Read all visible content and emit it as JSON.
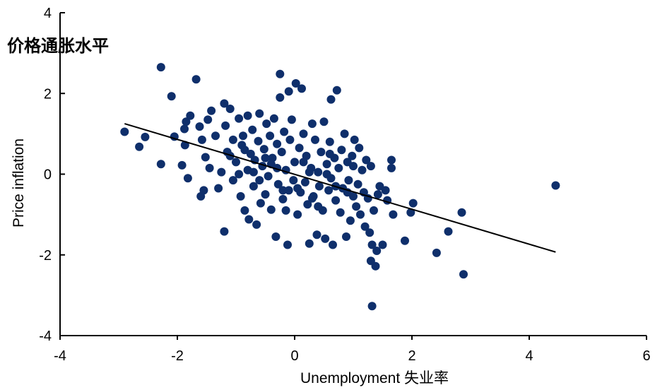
{
  "chart_data": {
    "type": "scatter",
    "title": "",
    "xlabel": "Unemployment 失业率",
    "ylabel": "Price inflation",
    "ylabel_cn": "价格通胀水平",
    "xlim": [
      -4,
      6
    ],
    "ylim": [
      -4,
      4
    ],
    "x_ticks": [
      "-4",
      "-2",
      "0",
      "2",
      "4",
      "6"
    ],
    "y_ticks": [
      "4",
      "2",
      "0",
      "-2",
      "-4"
    ],
    "grid": false,
    "colors": {
      "points": "#0f2f6b",
      "trend": "#000000",
      "axis": "#000000"
    },
    "trend_line": {
      "x": [
        -2.9,
        4.45
      ],
      "y": [
        1.25,
        -1.93
      ]
    },
    "points": [
      [
        -2.9,
        1.05
      ],
      [
        -2.55,
        0.92
      ],
      [
        -2.65,
        0.68
      ],
      [
        -2.28,
        0.25
      ],
      [
        -2.28,
        2.65
      ],
      [
        -2.1,
        1.93
      ],
      [
        -2.05,
        0.93
      ],
      [
        -1.92,
        0.22
      ],
      [
        -1.88,
        1.12
      ],
      [
        -1.87,
        0.72
      ],
      [
        -1.82,
        -0.1
      ],
      [
        -1.85,
        1.3
      ],
      [
        -1.78,
        1.45
      ],
      [
        -1.68,
        2.35
      ],
      [
        -1.62,
        1.18
      ],
      [
        -1.6,
        -0.55
      ],
      [
        -1.58,
        0.85
      ],
      [
        -1.55,
        -0.4
      ],
      [
        -1.52,
        0.42
      ],
      [
        -1.48,
        1.35
      ],
      [
        -1.45,
        0.15
      ],
      [
        -1.42,
        1.57
      ],
      [
        -1.35,
        0.95
      ],
      [
        -1.3,
        -0.35
      ],
      [
        -1.25,
        0.05
      ],
      [
        -1.2,
        1.75
      ],
      [
        -1.18,
        1.2
      ],
      [
        -1.15,
        0.55
      ],
      [
        -1.2,
        -1.42
      ],
      [
        -1.1,
        1.62
      ],
      [
        -1.05,
        0.85
      ],
      [
        -1.05,
        -0.15
      ],
      [
        -1.0,
        0.3
      ],
      [
        -0.95,
        1.38
      ],
      [
        -0.92,
        -0.55
      ],
      [
        -0.9,
        0.72
      ],
      [
        -0.88,
        0.95
      ],
      [
        -0.85,
        -0.9
      ],
      [
        -0.8,
        1.45
      ],
      [
        -0.8,
        0.1
      ],
      [
        -0.78,
        -1.12
      ],
      [
        -0.75,
        0.5
      ],
      [
        -0.72,
        1.1
      ],
      [
        -0.7,
        -0.3
      ],
      [
        -0.68,
        0.35
      ],
      [
        -0.65,
        -1.25
      ],
      [
        -0.62,
        0.82
      ],
      [
        -0.6,
        1.5
      ],
      [
        -0.58,
        -0.72
      ],
      [
        -0.55,
        0.2
      ],
      [
        -0.52,
        0.62
      ],
      [
        -0.5,
        -0.5
      ],
      [
        -0.48,
        1.25
      ],
      [
        -0.45,
        -0.05
      ],
      [
        -0.42,
        0.95
      ],
      [
        -0.4,
        -0.88
      ],
      [
        -0.38,
        0.4
      ],
      [
        -0.35,
        1.38
      ],
      [
        -0.32,
        -1.55
      ],
      [
        -0.3,
        0.75
      ],
      [
        -0.28,
        -0.25
      ],
      [
        -0.25,
        2.48
      ],
      [
        -0.25,
        1.9
      ],
      [
        -0.22,
        0.55
      ],
      [
        -0.2,
        -0.62
      ],
      [
        -0.18,
        1.05
      ],
      [
        -0.15,
        0.1
      ],
      [
        -0.12,
        -1.75
      ],
      [
        -0.1,
        2.05
      ],
      [
        -0.1,
        -0.4
      ],
      [
        -0.08,
        0.85
      ],
      [
        -0.05,
        1.35
      ],
      [
        -0.02,
        -0.15
      ],
      [
        0.0,
        0.3
      ],
      [
        0.02,
        2.25
      ],
      [
        0.05,
        -1.0
      ],
      [
        0.08,
        0.65
      ],
      [
        0.1,
        -0.45
      ],
      [
        0.12,
        2.12
      ],
      [
        0.15,
        1.0
      ],
      [
        0.18,
        -0.2
      ],
      [
        0.2,
        0.45
      ],
      [
        0.22,
        -0.75
      ],
      [
        0.25,
        -1.72
      ],
      [
        0.28,
        0.15
      ],
      [
        0.3,
        1.25
      ],
      [
        0.32,
        -0.55
      ],
      [
        0.35,
        0.85
      ],
      [
        0.38,
        -1.5
      ],
      [
        0.4,
        0.05
      ],
      [
        0.42,
        -0.3
      ],
      [
        0.45,
        0.55
      ],
      [
        0.48,
        -0.9
      ],
      [
        0.5,
        1.3
      ],
      [
        0.52,
        -1.6
      ],
      [
        0.55,
        0.25
      ],
      [
        0.58,
        -0.4
      ],
      [
        0.6,
        0.8
      ],
      [
        0.62,
        -0.1
      ],
      [
        0.65,
        -1.75
      ],
      [
        0.62,
        1.85
      ],
      [
        0.68,
        0.4
      ],
      [
        0.7,
        -0.65
      ],
      [
        0.72,
        2.08
      ],
      [
        0.75,
        0.15
      ],
      [
        0.78,
        -0.95
      ],
      [
        0.8,
        0.6
      ],
      [
        0.82,
        -0.35
      ],
      [
        0.85,
        1.0
      ],
      [
        0.88,
        -1.55
      ],
      [
        0.9,
        0.3
      ],
      [
        0.92,
        -0.15
      ],
      [
        0.95,
        -1.15
      ],
      [
        0.98,
        0.45
      ],
      [
        1.0,
        -0.55
      ],
      [
        1.02,
        0.85
      ],
      [
        1.05,
        -0.8
      ],
      [
        1.08,
        -0.25
      ],
      [
        1.1,
        0.65
      ],
      [
        1.12,
        -1.0
      ],
      [
        1.15,
        0.1
      ],
      [
        1.18,
        -0.45
      ],
      [
        1.2,
        -1.3
      ],
      [
        1.22,
        0.35
      ],
      [
        1.25,
        -0.6
      ],
      [
        1.28,
        -1.45
      ],
      [
        1.3,
        -2.15
      ],
      [
        1.3,
        0.2
      ],
      [
        1.32,
        -1.75
      ],
      [
        1.35,
        -0.9
      ],
      [
        1.38,
        -2.28
      ],
      [
        1.4,
        -1.9
      ],
      [
        1.42,
        -0.5
      ],
      [
        1.45,
        -0.3
      ],
      [
        1.5,
        -1.75
      ],
      [
        1.55,
        -0.4
      ],
      [
        1.58,
        -0.65
      ],
      [
        1.65,
        0.35
      ],
      [
        1.65,
        0.15
      ],
      [
        1.68,
        -1.0
      ],
      [
        1.32,
        -3.27
      ],
      [
        1.88,
        -1.65
      ],
      [
        1.98,
        -0.95
      ],
      [
        2.02,
        -0.72
      ],
      [
        2.42,
        -1.95
      ],
      [
        2.62,
        -1.42
      ],
      [
        2.85,
        -0.95
      ],
      [
        2.88,
        -2.48
      ],
      [
        4.45,
        -0.28
      ],
      [
        -0.95,
        0.0
      ],
      [
        -0.7,
        0.05
      ],
      [
        -0.4,
        0.25
      ],
      [
        0.05,
        -0.35
      ],
      [
        0.3,
        -0.6
      ],
      [
        -0.6,
        -0.15
      ],
      [
        0.55,
        0.0
      ],
      [
        0.7,
        -0.3
      ],
      [
        -0.3,
        0.15
      ],
      [
        0.15,
        0.3
      ],
      [
        -1.1,
        0.45
      ],
      [
        -0.85,
        0.6
      ],
      [
        0.4,
        -0.8
      ],
      [
        0.9,
        -0.45
      ],
      [
        -0.2,
        -0.4
      ],
      [
        0.6,
        0.5
      ],
      [
        -0.5,
        0.4
      ],
      [
        0.25,
        0.05
      ],
      [
        1.0,
        0.2
      ],
      [
        -0.15,
        -0.9
      ]
    ]
  }
}
